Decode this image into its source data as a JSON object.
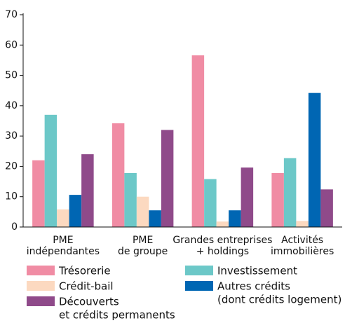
{
  "chart_data": {
    "type": "bar",
    "categories": [
      [
        "PME",
        "indépendantes"
      ],
      [
        "PME",
        "de groupe"
      ],
      [
        "Grandes entreprises",
        "+ holdings"
      ],
      [
        "Activités",
        "immobilières"
      ]
    ],
    "series": [
      {
        "name": [
          "Trésorerie"
        ],
        "color": "#f08ca4",
        "values": [
          22,
          34.2,
          56.6,
          17.8
        ]
      },
      {
        "name": [
          "Investissement"
        ],
        "color": "#6cc8c8",
        "values": [
          37,
          17.8,
          15.8,
          22.7
        ]
      },
      {
        "name": [
          "Crédit-bail"
        ],
        "color": "#fcd9c0",
        "values": [
          5.8,
          10,
          1.8,
          2
        ]
      },
      {
        "name": [
          "Autres crédits",
          "(dont crédits logement)"
        ],
        "color": "#0066b3",
        "values": [
          10.6,
          5.5,
          5.5,
          44.2
        ]
      },
      {
        "name": [
          "Découverts",
          "et crédits permanents"
        ],
        "color": "#8f4a8a",
        "values": [
          24,
          32,
          19.6,
          12.4
        ]
      }
    ],
    "ylim": [
      0,
      70
    ],
    "yticks": [
      0,
      10,
      20,
      30,
      40,
      50,
      60,
      70
    ],
    "grid": false
  }
}
